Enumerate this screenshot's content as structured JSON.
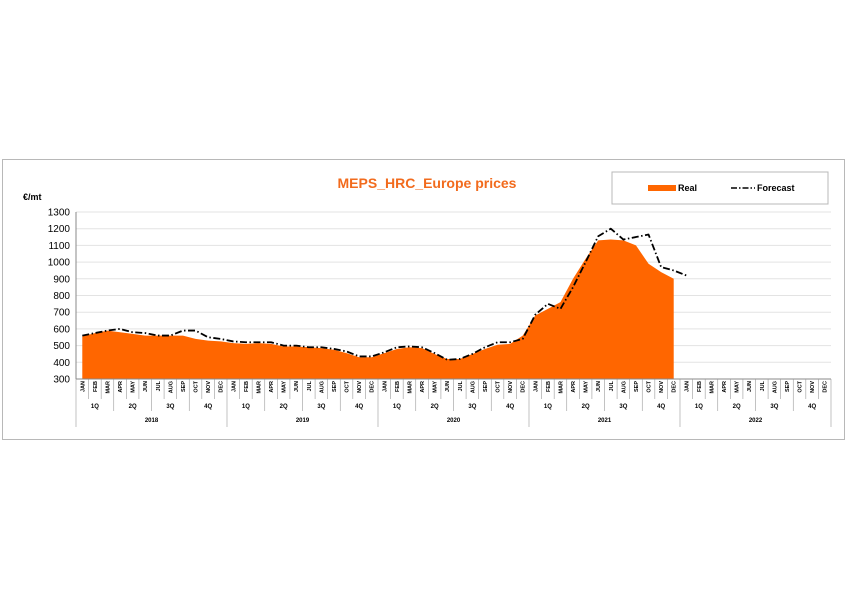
{
  "chart_data": {
    "type": "area",
    "title": "MEPS_HRC_Europe prices",
    "ylabel": "€/mt",
    "ylim": [
      300,
      1300
    ],
    "yticks": [
      300,
      400,
      500,
      600,
      700,
      800,
      900,
      1000,
      1100,
      1200,
      1300
    ],
    "grid": true,
    "legend": "top-right",
    "months": [
      "JAN",
      "FEB",
      "MAR",
      "APR",
      "MAY",
      "JUN",
      "JUL",
      "AUG",
      "SEP",
      "OCT",
      "NOV",
      "DEC"
    ],
    "quarters": [
      "1Q",
      "2Q",
      "3Q",
      "4Q"
    ],
    "years": [
      "2018",
      "2019",
      "2020",
      "2021",
      "2022"
    ],
    "series": [
      {
        "name": "Real",
        "kind": "area",
        "color": "#ff6600",
        "values": [
          555,
          575,
          590,
          580,
          570,
          560,
          560,
          560,
          560,
          540,
          530,
          525,
          515,
          510,
          515,
          510,
          495,
          495,
          490,
          485,
          475,
          455,
          430,
          430,
          455,
          480,
          490,
          485,
          450,
          420,
          420,
          450,
          480,
          505,
          510,
          560,
          680,
          720,
          760,
          900,
          1020,
          1130,
          1135,
          1130,
          1100,
          990,
          940,
          900
        ]
      },
      {
        "name": "Forecast",
        "kind": "dash-dot",
        "color": "#000000",
        "values": [
          560,
          575,
          590,
          600,
          580,
          575,
          560,
          560,
          590,
          590,
          550,
          540,
          525,
          520,
          520,
          520,
          500,
          500,
          490,
          490,
          480,
          465,
          435,
          435,
          460,
          490,
          495,
          490,
          455,
          415,
          420,
          450,
          490,
          520,
          520,
          540,
          685,
          750,
          720,
          850,
          1000,
          1155,
          1200,
          1135,
          1150,
          1165,
          970,
          950,
          920
        ]
      }
    ]
  }
}
